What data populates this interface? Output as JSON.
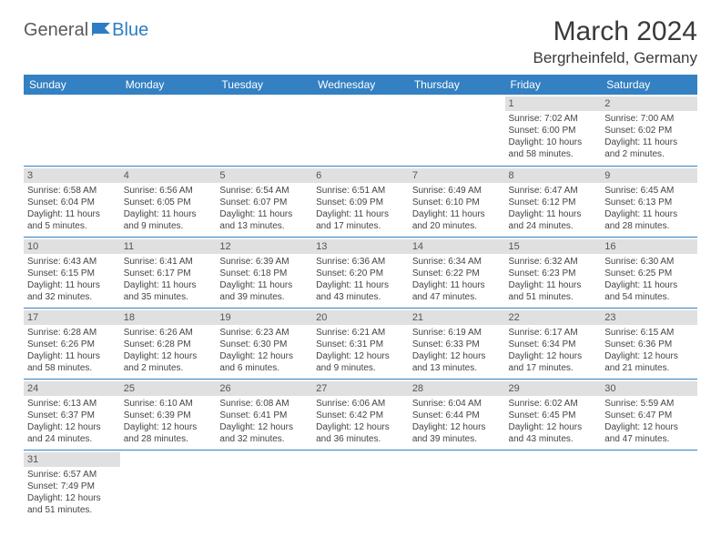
{
  "logo": {
    "general": "General",
    "blue": "Blue"
  },
  "title": "March 2024",
  "location": "Bergrheinfeld, Germany",
  "header_color": "#3380c2",
  "daynum_bg": "#e0e0e0",
  "days": [
    "Sunday",
    "Monday",
    "Tuesday",
    "Wednesday",
    "Thursday",
    "Friday",
    "Saturday"
  ],
  "weeks": [
    [
      {
        "n": "",
        "lines": []
      },
      {
        "n": "",
        "lines": []
      },
      {
        "n": "",
        "lines": []
      },
      {
        "n": "",
        "lines": []
      },
      {
        "n": "",
        "lines": []
      },
      {
        "n": "1",
        "lines": [
          "Sunrise: 7:02 AM",
          "Sunset: 6:00 PM",
          "Daylight: 10 hours",
          "and 58 minutes."
        ]
      },
      {
        "n": "2",
        "lines": [
          "Sunrise: 7:00 AM",
          "Sunset: 6:02 PM",
          "Daylight: 11 hours",
          "and 2 minutes."
        ]
      }
    ],
    [
      {
        "n": "3",
        "lines": [
          "Sunrise: 6:58 AM",
          "Sunset: 6:04 PM",
          "Daylight: 11 hours",
          "and 5 minutes."
        ]
      },
      {
        "n": "4",
        "lines": [
          "Sunrise: 6:56 AM",
          "Sunset: 6:05 PM",
          "Daylight: 11 hours",
          "and 9 minutes."
        ]
      },
      {
        "n": "5",
        "lines": [
          "Sunrise: 6:54 AM",
          "Sunset: 6:07 PM",
          "Daylight: 11 hours",
          "and 13 minutes."
        ]
      },
      {
        "n": "6",
        "lines": [
          "Sunrise: 6:51 AM",
          "Sunset: 6:09 PM",
          "Daylight: 11 hours",
          "and 17 minutes."
        ]
      },
      {
        "n": "7",
        "lines": [
          "Sunrise: 6:49 AM",
          "Sunset: 6:10 PM",
          "Daylight: 11 hours",
          "and 20 minutes."
        ]
      },
      {
        "n": "8",
        "lines": [
          "Sunrise: 6:47 AM",
          "Sunset: 6:12 PM",
          "Daylight: 11 hours",
          "and 24 minutes."
        ]
      },
      {
        "n": "9",
        "lines": [
          "Sunrise: 6:45 AM",
          "Sunset: 6:13 PM",
          "Daylight: 11 hours",
          "and 28 minutes."
        ]
      }
    ],
    [
      {
        "n": "10",
        "lines": [
          "Sunrise: 6:43 AM",
          "Sunset: 6:15 PM",
          "Daylight: 11 hours",
          "and 32 minutes."
        ]
      },
      {
        "n": "11",
        "lines": [
          "Sunrise: 6:41 AM",
          "Sunset: 6:17 PM",
          "Daylight: 11 hours",
          "and 35 minutes."
        ]
      },
      {
        "n": "12",
        "lines": [
          "Sunrise: 6:39 AM",
          "Sunset: 6:18 PM",
          "Daylight: 11 hours",
          "and 39 minutes."
        ]
      },
      {
        "n": "13",
        "lines": [
          "Sunrise: 6:36 AM",
          "Sunset: 6:20 PM",
          "Daylight: 11 hours",
          "and 43 minutes."
        ]
      },
      {
        "n": "14",
        "lines": [
          "Sunrise: 6:34 AM",
          "Sunset: 6:22 PM",
          "Daylight: 11 hours",
          "and 47 minutes."
        ]
      },
      {
        "n": "15",
        "lines": [
          "Sunrise: 6:32 AM",
          "Sunset: 6:23 PM",
          "Daylight: 11 hours",
          "and 51 minutes."
        ]
      },
      {
        "n": "16",
        "lines": [
          "Sunrise: 6:30 AM",
          "Sunset: 6:25 PM",
          "Daylight: 11 hours",
          "and 54 minutes."
        ]
      }
    ],
    [
      {
        "n": "17",
        "lines": [
          "Sunrise: 6:28 AM",
          "Sunset: 6:26 PM",
          "Daylight: 11 hours",
          "and 58 minutes."
        ]
      },
      {
        "n": "18",
        "lines": [
          "Sunrise: 6:26 AM",
          "Sunset: 6:28 PM",
          "Daylight: 12 hours",
          "and 2 minutes."
        ]
      },
      {
        "n": "19",
        "lines": [
          "Sunrise: 6:23 AM",
          "Sunset: 6:30 PM",
          "Daylight: 12 hours",
          "and 6 minutes."
        ]
      },
      {
        "n": "20",
        "lines": [
          "Sunrise: 6:21 AM",
          "Sunset: 6:31 PM",
          "Daylight: 12 hours",
          "and 9 minutes."
        ]
      },
      {
        "n": "21",
        "lines": [
          "Sunrise: 6:19 AM",
          "Sunset: 6:33 PM",
          "Daylight: 12 hours",
          "and 13 minutes."
        ]
      },
      {
        "n": "22",
        "lines": [
          "Sunrise: 6:17 AM",
          "Sunset: 6:34 PM",
          "Daylight: 12 hours",
          "and 17 minutes."
        ]
      },
      {
        "n": "23",
        "lines": [
          "Sunrise: 6:15 AM",
          "Sunset: 6:36 PM",
          "Daylight: 12 hours",
          "and 21 minutes."
        ]
      }
    ],
    [
      {
        "n": "24",
        "lines": [
          "Sunrise: 6:13 AM",
          "Sunset: 6:37 PM",
          "Daylight: 12 hours",
          "and 24 minutes."
        ]
      },
      {
        "n": "25",
        "lines": [
          "Sunrise: 6:10 AM",
          "Sunset: 6:39 PM",
          "Daylight: 12 hours",
          "and 28 minutes."
        ]
      },
      {
        "n": "26",
        "lines": [
          "Sunrise: 6:08 AM",
          "Sunset: 6:41 PM",
          "Daylight: 12 hours",
          "and 32 minutes."
        ]
      },
      {
        "n": "27",
        "lines": [
          "Sunrise: 6:06 AM",
          "Sunset: 6:42 PM",
          "Daylight: 12 hours",
          "and 36 minutes."
        ]
      },
      {
        "n": "28",
        "lines": [
          "Sunrise: 6:04 AM",
          "Sunset: 6:44 PM",
          "Daylight: 12 hours",
          "and 39 minutes."
        ]
      },
      {
        "n": "29",
        "lines": [
          "Sunrise: 6:02 AM",
          "Sunset: 6:45 PM",
          "Daylight: 12 hours",
          "and 43 minutes."
        ]
      },
      {
        "n": "30",
        "lines": [
          "Sunrise: 5:59 AM",
          "Sunset: 6:47 PM",
          "Daylight: 12 hours",
          "and 47 minutes."
        ]
      }
    ],
    [
      {
        "n": "31",
        "lines": [
          "Sunrise: 6:57 AM",
          "Sunset: 7:49 PM",
          "Daylight: 12 hours",
          "and 51 minutes."
        ]
      },
      {
        "n": "",
        "lines": []
      },
      {
        "n": "",
        "lines": []
      },
      {
        "n": "",
        "lines": []
      },
      {
        "n": "",
        "lines": []
      },
      {
        "n": "",
        "lines": []
      },
      {
        "n": "",
        "lines": []
      }
    ]
  ]
}
